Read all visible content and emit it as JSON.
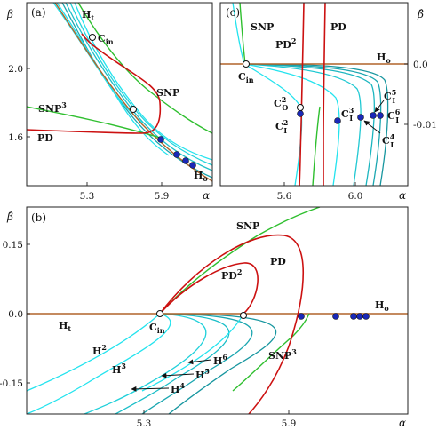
{
  "colors": {
    "cyan": "#23e3ee",
    "cyan_dark": "#1aa6b0",
    "red": "#cc1111",
    "green": "#2fbf2f",
    "brown": "#b0642a",
    "dot": "#1a28b8"
  },
  "panels": [
    {
      "id": "a",
      "tag": "(a)",
      "ylabel": "β",
      "xlabel": "α",
      "xticks": [
        "5.3",
        "5.9"
      ],
      "yticks": [
        "2.0",
        "1.6"
      ],
      "labels": {
        "ht": "H",
        "ht_sub": "t",
        "cin": "C",
        "cin_sub": "in",
        "snp": "SNP",
        "snp3": "SNP",
        "snp3_sup": "3",
        "pd": "PD",
        "ho": "H",
        "ho_sub": "o"
      }
    },
    {
      "id": "c",
      "tag": "(c)",
      "ylabel": "β̂",
      "xlabel": "α",
      "xticks": [
        "5.6",
        "6.0"
      ],
      "yticks": [
        "0.0",
        "-0.01"
      ],
      "labels": {
        "snp": "SNP",
        "pd2": "PD",
        "pd2_sup": "2",
        "pd": "PD",
        "ho": "H",
        "ho_sub": "o",
        "cin": "C",
        "cin_sub": "in",
        "co2": "C",
        "co2_sup": "2",
        "co2_sub": "O",
        "ci2": "C",
        "ci2_sup": "2",
        "ci2_sub": "I",
        "ci3": "C",
        "ci3_sup": "3",
        "ci3_sub": "I",
        "ci4": "C",
        "ci4_sup": "4",
        "ci4_sub": "I",
        "ci5": "C",
        "ci5_sup": "5",
        "ci5_sub": "I",
        "ci6": "C",
        "ci6_sup": "6",
        "ci6_sub": "I"
      }
    },
    {
      "id": "b",
      "tag": "(b)",
      "ylabel": "β̂",
      "xlabel": "α",
      "xticks": [
        "5.3",
        "5.9"
      ],
      "yticks": [
        "0.15",
        "0.0",
        "-0.15"
      ],
      "labels": {
        "snp": "SNP",
        "pd": "PD",
        "pd2": "PD",
        "pd2_sup": "2",
        "ho": "H",
        "ho_sub": "o",
        "ht": "H",
        "ht_sub": "t",
        "cin": "C",
        "cin_sub": "in",
        "h2": "H",
        "h2_sup": "2",
        "h3": "H",
        "h3_sup": "3",
        "h4": "H",
        "h4_sup": "4",
        "h5": "H",
        "h5_sup": "5",
        "h6": "H",
        "h6_sup": "6",
        "snp3": "SNP",
        "snp3_sup": "3"
      }
    }
  ],
  "chart_data": [
    {
      "type": "line",
      "panel": "a",
      "xlabel": "α",
      "ylabel": "β",
      "xlim": [
        4.9,
        6.25
      ],
      "ylim": [
        1.3,
        2.35
      ],
      "series": [
        {
          "name": "Ht",
          "x": [
            5.05,
            5.3,
            5.55,
            5.8,
            6.0,
            6.22
          ],
          "y": [
            2.35,
            2.2,
            2.0,
            1.75,
            1.55,
            1.35
          ]
        },
        {
          "name": "SNP",
          "x": [
            5.25,
            5.45,
            5.65,
            5.9,
            6.2
          ],
          "y": [
            2.35,
            2.1,
            1.9,
            1.72,
            1.58
          ]
        },
        {
          "name": "SNP3",
          "x": [
            4.9,
            5.2,
            5.5,
            5.8
          ],
          "y": [
            1.78,
            1.72,
            1.66,
            1.6
          ]
        },
        {
          "name": "PD",
          "x": [
            4.9,
            5.2,
            5.5,
            5.7,
            5.77,
            5.6,
            5.45
          ],
          "y": [
            1.61,
            1.6,
            1.6,
            1.65,
            1.85,
            1.97,
            2.03
          ]
        },
        {
          "name": "Ho",
          "x": [
            5.3,
            5.6,
            5.9,
            6.25
          ],
          "y": [
            2.3,
            1.95,
            1.62,
            1.38
          ]
        }
      ],
      "points": [
        {
          "label": "Cin",
          "x": 5.33,
          "y": 2.23,
          "kind": "open"
        },
        {
          "label": "",
          "x": 5.76,
          "y": 1.76,
          "kind": "open"
        },
        {
          "label": "",
          "x": 5.9,
          "y": 1.58,
          "kind": "filled"
        },
        {
          "label": "",
          "x": 6.0,
          "y": 1.51,
          "kind": "filled"
        },
        {
          "label": "",
          "x": 6.06,
          "y": 1.47,
          "kind": "filled"
        },
        {
          "label": "",
          "x": 6.1,
          "y": 1.44,
          "kind": "filled"
        }
      ]
    },
    {
      "type": "line",
      "panel": "c",
      "xlabel": "α",
      "ylabel": "β̂",
      "xlim": [
        5.25,
        6.35
      ],
      "ylim": [
        -0.026,
        0.012
      ],
      "series": [
        {
          "name": "Ho",
          "x": [
            5.25,
            6.35
          ],
          "y": [
            0.0,
            0.0
          ]
        },
        {
          "name": "SNP",
          "x": [
            5.38,
            5.39,
            5.4,
            5.42
          ],
          "y": [
            0.012,
            0.008,
            0.004,
            0.0
          ]
        },
        {
          "name": "PD2",
          "x": [
            5.71,
            5.7,
            5.7,
            5.69
          ],
          "y": [
            0.012,
            0.0,
            -0.008,
            -0.026
          ]
        },
        {
          "name": "PD",
          "x": [
            5.83,
            5.82,
            5.81,
            5.81
          ],
          "y": [
            0.012,
            0.004,
            -0.01,
            -0.026
          ]
        }
      ],
      "points": [
        {
          "label": "Cin",
          "x": 5.41,
          "y": 0.0,
          "kind": "open"
        },
        {
          "label": "CO2",
          "x": 5.69,
          "y": -0.0073,
          "kind": "open"
        },
        {
          "label": "CI2",
          "x": 5.69,
          "y": -0.0083,
          "kind": "filled"
        },
        {
          "label": "CI3",
          "x": 5.97,
          "y": -0.0095,
          "kind": "filled"
        },
        {
          "label": "CI4",
          "x": 6.1,
          "y": -0.009,
          "kind": "filled"
        },
        {
          "label": "CI5",
          "x": 6.2,
          "y": -0.0088,
          "kind": "filled"
        },
        {
          "label": "CI6",
          "x": 6.24,
          "y": -0.0087,
          "kind": "filled"
        }
      ]
    },
    {
      "type": "line",
      "panel": "b",
      "xlabel": "α",
      "ylabel": "β̂",
      "xlim": [
        4.9,
        6.3
      ],
      "ylim": [
        -0.22,
        0.22
      ],
      "series": [
        {
          "name": "Ho",
          "x": [
            4.9,
            6.3
          ],
          "y": [
            0.0,
            0.0
          ]
        },
        {
          "name": "SNP",
          "x": [
            5.35,
            5.5,
            5.7,
            5.9,
            6.2
          ],
          "y": [
            0.0,
            0.06,
            0.12,
            0.17,
            0.22
          ]
        },
        {
          "name": "PD",
          "x": [
            5.35,
            5.6,
            5.8,
            5.95,
            5.98,
            5.9,
            5.72
          ],
          "y": [
            0.0,
            0.07,
            0.13,
            0.12,
            0.03,
            -0.13,
            -0.22
          ]
        },
        {
          "name": "PD2",
          "x": [
            5.35,
            5.5,
            5.65,
            5.75,
            5.7,
            5.68
          ],
          "y": [
            0.0,
            0.04,
            0.08,
            0.05,
            0.01,
            0.0
          ]
        },
        {
          "name": "SNP3",
          "x": [
            5.72,
            5.8,
            5.9,
            6.05
          ],
          "y": [
            -0.15,
            -0.11,
            -0.06,
            0.0
          ]
        }
      ],
      "points": [
        {
          "label": "Cin",
          "x": 5.35,
          "y": 0.0,
          "kind": "open"
        },
        {
          "label": "",
          "x": 5.7,
          "y": 0.0,
          "kind": "open"
        },
        {
          "label": "",
          "x": 5.95,
          "y": 0.0,
          "kind": "filled"
        },
        {
          "label": "",
          "x": 6.12,
          "y": 0.0,
          "kind": "filled"
        },
        {
          "label": "",
          "x": 6.18,
          "y": 0.0,
          "kind": "filled"
        },
        {
          "label": "",
          "x": 6.22,
          "y": 0.0,
          "kind": "filled"
        },
        {
          "label": "",
          "x": 6.26,
          "y": 0.0,
          "kind": "filled"
        }
      ]
    }
  ]
}
